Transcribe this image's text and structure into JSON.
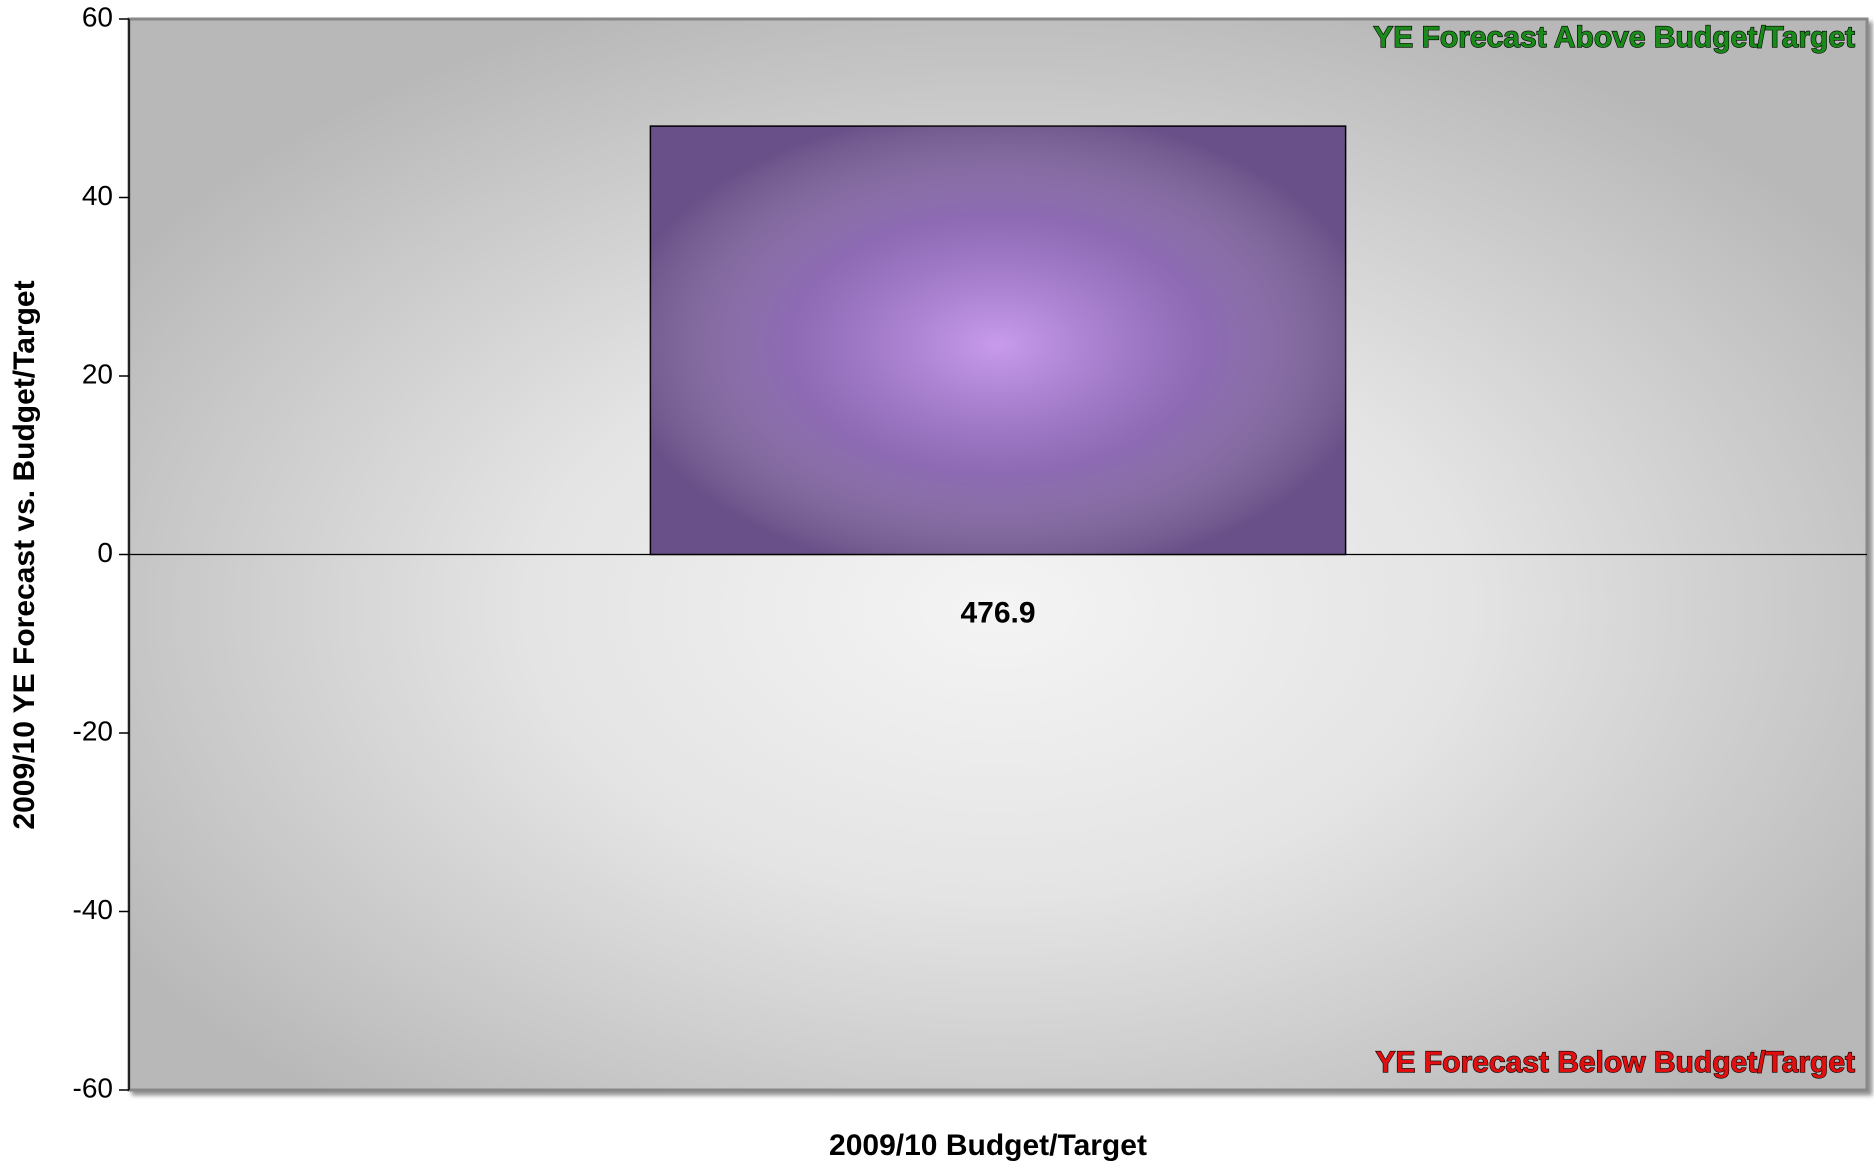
{
  "chart_data": {
    "type": "bar",
    "categories": [
      "476.9"
    ],
    "values": [
      48
    ],
    "color": "#6a5088",
    "ylim": [
      -60,
      60
    ],
    "yticks": [
      -60,
      -40,
      -20,
      0,
      20,
      40,
      60
    ],
    "xlabel": "2009/10 Budget/Target",
    "ylabel": "2009/10 YE Forecast vs. Budget/Target",
    "annotations": [
      {
        "text": "YE Forecast Above Budget/Target",
        "color": "#1a8a1a",
        "position": "top-right"
      },
      {
        "text": "YE Forecast Below Budget/Target",
        "color": "#e01010",
        "position": "bottom-right"
      }
    ]
  }
}
